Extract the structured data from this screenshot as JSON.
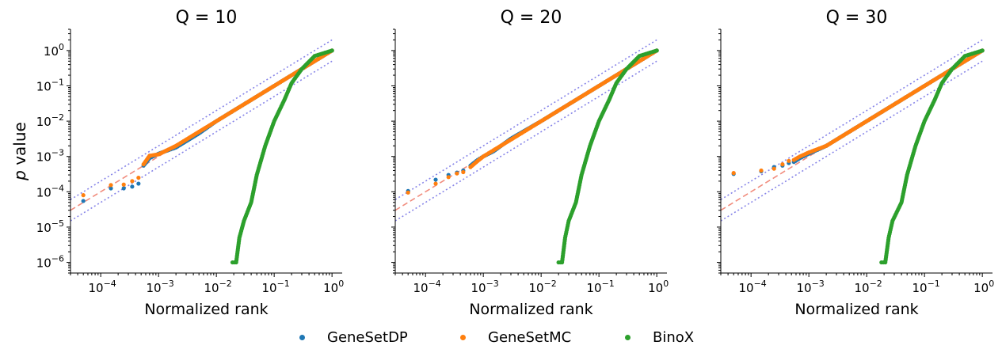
{
  "figure": {
    "ylabel_italic": "p",
    "ylabel_rest": " value"
  },
  "legend": {
    "items": [
      {
        "label": "GeneSetDP",
        "color": "#1f77b4"
      },
      {
        "label": "GeneSetMC",
        "color": "#ff7f0e"
      },
      {
        "label": "BinoX",
        "color": "#2ca02c"
      }
    ]
  },
  "chart_data": [
    {
      "type": "scatter",
      "title": "Q = 10",
      "xlabel": "Normalized rank",
      "ylabel": "p value",
      "xscale": "log",
      "yscale": "log",
      "xlim": [
        3e-05,
        1.5
      ],
      "ylim": [
        5e-07,
        4
      ],
      "xticks": [
        "10^-4",
        "10^-3",
        "10^-2",
        "10^-1",
        "10^0"
      ],
      "yticks": [
        "10^-6",
        "10^-5",
        "10^-4",
        "10^-3",
        "10^-2",
        "10^-1",
        "10^0"
      ],
      "reference_lines": {
        "identity": "dashed",
        "bounds": "dotted",
        "bound_factors": [
          0.5,
          2
        ]
      },
      "series": [
        {
          "name": "GeneSetDP",
          "color": "#1f77b4",
          "points": [
            [
              5e-05,
              5.5e-05
            ],
            [
              0.00015,
              0.000125
            ],
            [
              0.00025,
              0.000125
            ],
            [
              0.00035,
              0.00014
            ],
            [
              0.00045,
              0.00017
            ],
            [
              0.00055,
              0.00055
            ],
            [
              0.0007,
              0.0009
            ],
            [
              0.001,
              0.0012
            ],
            [
              0.002,
              0.0018
            ],
            [
              0.005,
              0.0045
            ],
            [
              0.01,
              0.01
            ],
            [
              0.03,
              0.03
            ],
            [
              0.1,
              0.1
            ],
            [
              0.3,
              0.3
            ],
            [
              1,
              1
            ]
          ]
        },
        {
          "name": "GeneSetMC",
          "color": "#ff7f0e",
          "points": [
            [
              5e-05,
              8e-05
            ],
            [
              0.00015,
              0.000155
            ],
            [
              0.00025,
              0.00016
            ],
            [
              0.00035,
              0.0002
            ],
            [
              0.00045,
              0.00025
            ],
            [
              0.00055,
              0.0006
            ],
            [
              0.0007,
              0.00105
            ],
            [
              0.001,
              0.00115
            ],
            [
              0.002,
              0.002
            ],
            [
              0.005,
              0.005
            ],
            [
              0.01,
              0.01
            ],
            [
              0.03,
              0.03
            ],
            [
              0.1,
              0.1
            ],
            [
              0.3,
              0.3
            ],
            [
              1,
              1
            ]
          ]
        },
        {
          "name": "BinoX",
          "color": "#2ca02c",
          "points": [
            [
              0.019,
              1e-06
            ],
            [
              0.022,
              1e-06
            ],
            [
              0.025,
              5e-06
            ],
            [
              0.03,
              1.5e-05
            ],
            [
              0.04,
              5e-05
            ],
            [
              0.05,
              0.0003
            ],
            [
              0.07,
              0.002
            ],
            [
              0.1,
              0.01
            ],
            [
              0.15,
              0.04
            ],
            [
              0.2,
              0.12
            ],
            [
              0.3,
              0.3
            ],
            [
              0.5,
              0.7
            ],
            [
              1,
              1
            ]
          ]
        }
      ]
    },
    {
      "type": "scatter",
      "title": "Q = 20",
      "xlabel": "Normalized rank",
      "ylabel": "",
      "xscale": "log",
      "yscale": "log",
      "xlim": [
        3e-05,
        1.5
      ],
      "ylim": [
        5e-07,
        4
      ],
      "xticks": [
        "10^-4",
        "10^-3",
        "10^-2",
        "10^-1",
        "10^0"
      ],
      "yticks": [],
      "reference_lines": {
        "identity": "dashed",
        "bounds": "dotted",
        "bound_factors": [
          0.5,
          2
        ]
      },
      "series": [
        {
          "name": "GeneSetDP",
          "color": "#1f77b4",
          "points": [
            [
              5e-05,
              0.000105
            ],
            [
              0.00015,
              0.00022
            ],
            [
              0.00025,
              0.0003
            ],
            [
              0.00035,
              0.00035
            ],
            [
              0.00045,
              0.0004
            ],
            [
              0.0006,
              0.00055
            ],
            [
              0.0008,
              0.0008
            ],
            [
              0.001,
              0.001
            ],
            [
              0.0015,
              0.0014
            ],
            [
              0.003,
              0.0032
            ],
            [
              0.01,
              0.01
            ],
            [
              0.03,
              0.03
            ],
            [
              0.1,
              0.1
            ],
            [
              0.3,
              0.3
            ],
            [
              1,
              1
            ]
          ]
        },
        {
          "name": "GeneSetMC",
          "color": "#ff7f0e",
          "points": [
            [
              5e-05,
              9.5e-05
            ],
            [
              0.00015,
              0.00017
            ],
            [
              0.00025,
              0.00026
            ],
            [
              0.00035,
              0.00033
            ],
            [
              0.00045,
              0.00036
            ],
            [
              0.0006,
              0.0005
            ],
            [
              0.0008,
              0.00075
            ],
            [
              0.001,
              0.001
            ],
            [
              0.0015,
              0.0015
            ],
            [
              0.003,
              0.003
            ],
            [
              0.01,
              0.01
            ],
            [
              0.03,
              0.03
            ],
            [
              0.1,
              0.1
            ],
            [
              0.3,
              0.3
            ],
            [
              1,
              1
            ]
          ]
        },
        {
          "name": "BinoX",
          "color": "#2ca02c",
          "points": [
            [
              0.02,
              1e-06
            ],
            [
              0.023,
              1e-06
            ],
            [
              0.026,
              5e-06
            ],
            [
              0.03,
              1.5e-05
            ],
            [
              0.04,
              5e-05
            ],
            [
              0.05,
              0.0003
            ],
            [
              0.07,
              0.002
            ],
            [
              0.1,
              0.01
            ],
            [
              0.15,
              0.04
            ],
            [
              0.2,
              0.12
            ],
            [
              0.3,
              0.3
            ],
            [
              0.5,
              0.7
            ],
            [
              1,
              1
            ]
          ]
        }
      ]
    },
    {
      "type": "scatter",
      "title": "Q = 30",
      "xlabel": "Normalized rank",
      "ylabel": "",
      "xscale": "log",
      "yscale": "log",
      "xlim": [
        3e-05,
        1.5
      ],
      "ylim": [
        5e-07,
        4
      ],
      "xticks": [
        "10^-4",
        "10^-3",
        "10^-2",
        "10^-1",
        "10^0"
      ],
      "yticks": [],
      "reference_lines": {
        "identity": "dashed",
        "bounds": "dotted",
        "bound_factors": [
          0.5,
          2
        ]
      },
      "series": [
        {
          "name": "GeneSetDP",
          "color": "#1f77b4",
          "points": [
            [
              5e-05,
              0.00032
            ],
            [
              0.00015,
              0.00038
            ],
            [
              0.00025,
              0.0005
            ],
            [
              0.00035,
              0.00055
            ],
            [
              0.00045,
              0.00065
            ],
            [
              0.00055,
              0.0007
            ],
            [
              0.0007,
              0.0009
            ],
            [
              0.001,
              0.0012
            ],
            [
              0.002,
              0.002
            ],
            [
              0.005,
              0.005
            ],
            [
              0.01,
              0.01
            ],
            [
              0.03,
              0.03
            ],
            [
              0.1,
              0.1
            ],
            [
              0.3,
              0.3
            ],
            [
              1,
              1
            ]
          ]
        },
        {
          "name": "GeneSetMC",
          "color": "#ff7f0e",
          "points": [
            [
              5e-05,
              0.00034
            ],
            [
              0.00015,
              0.0004
            ],
            [
              0.00025,
              0.00045
            ],
            [
              0.00035,
              0.0006
            ],
            [
              0.00045,
              0.00075
            ],
            [
              0.00055,
              0.0008
            ],
            [
              0.0007,
              0.001
            ],
            [
              0.001,
              0.0013
            ],
            [
              0.002,
              0.002
            ],
            [
              0.005,
              0.005
            ],
            [
              0.01,
              0.01
            ],
            [
              0.03,
              0.03
            ],
            [
              0.1,
              0.1
            ],
            [
              0.3,
              0.3
            ],
            [
              1,
              1
            ]
          ]
        },
        {
          "name": "BinoX",
          "color": "#2ca02c",
          "points": [
            [
              0.018,
              1e-06
            ],
            [
              0.021,
              1e-06
            ],
            [
              0.024,
              5e-06
            ],
            [
              0.028,
              1.5e-05
            ],
            [
              0.04,
              5e-05
            ],
            [
              0.05,
              0.0003
            ],
            [
              0.07,
              0.002
            ],
            [
              0.1,
              0.01
            ],
            [
              0.15,
              0.04
            ],
            [
              0.2,
              0.12
            ],
            [
              0.3,
              0.3
            ],
            [
              0.5,
              0.7
            ],
            [
              1,
              1
            ]
          ]
        }
      ]
    }
  ]
}
